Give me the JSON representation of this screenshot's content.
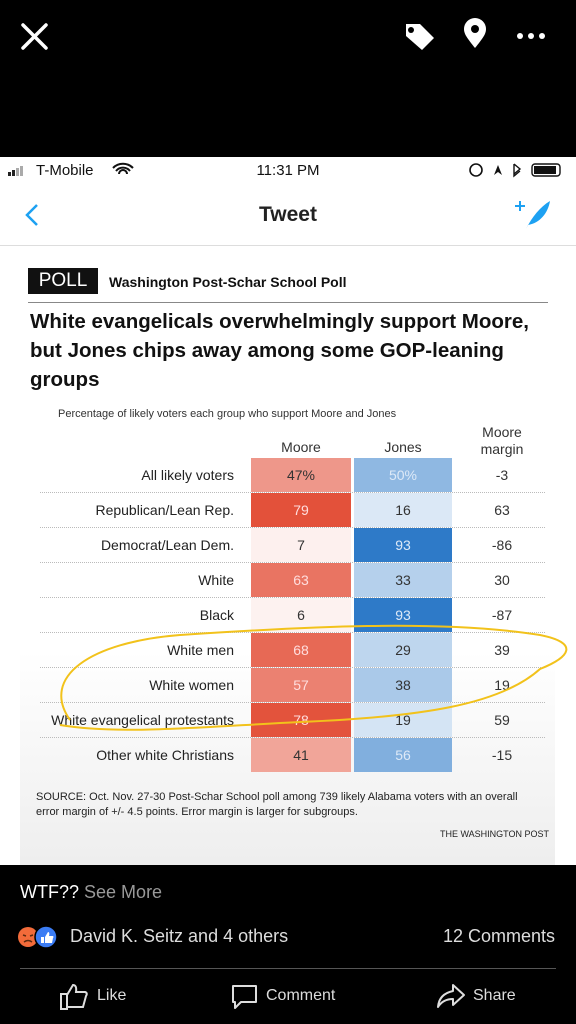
{
  "status_bar": {
    "carrier": "T-Mobile",
    "time": "11:31 PM"
  },
  "tweet_header": {
    "title": "Tweet"
  },
  "poll": {
    "badge": "POLL",
    "source_name": "Washington Post-Schar School Poll",
    "headline": "White evangelicals overwhelmingly support Moore, but Jones chips away among some GOP-leaning groups",
    "subtitle": "Percentage of likely voters each group who support Moore and Jones",
    "columns": [
      "Moore",
      "Jones",
      "Moore margin"
    ],
    "table": {
      "rows": [
        [
          "All likely voters",
          "47%",
          "50%",
          "-3"
        ],
        [
          "Republican/Lean Rep.",
          "79",
          "16",
          "63"
        ],
        [
          "Democrat/Lean Dem.",
          "7",
          "93",
          "-86"
        ],
        [
          "White",
          "63",
          "33",
          "30"
        ],
        [
          "Black",
          "6",
          "93",
          "-87"
        ],
        [
          "White men",
          "68",
          "29",
          "39"
        ],
        [
          "White women",
          "57",
          "38",
          "19"
        ],
        [
          "White evangelical protestants",
          "78",
          "19",
          "59"
        ],
        [
          "Other white Christians",
          "41",
          "56",
          "-15"
        ]
      ]
    },
    "source_note": "SOURCE: Oct. Nov. 27-30 Post-Schar School poll among 739 likely Alabama voters with an overall error margin of +/- 4.5 points. Error margin is larger for subgroups.",
    "credit": "THE WASHINGTON POST"
  },
  "post": {
    "caption": "WTF??",
    "see_more": "See More",
    "reactions": "David K. Seitz and 4 others",
    "comments": "12 Comments",
    "actions": [
      "Like",
      "Comment",
      "Share"
    ]
  }
}
